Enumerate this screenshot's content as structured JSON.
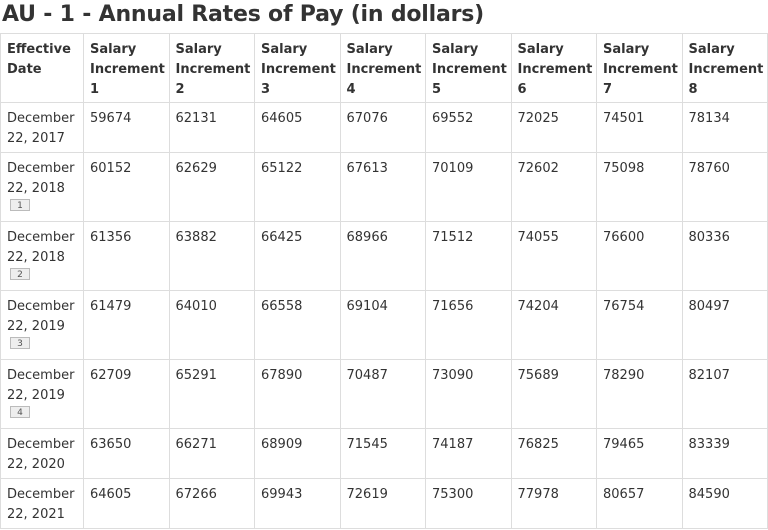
{
  "title": "AU - 1 - Annual Rates of Pay (in dollars)",
  "headers": [
    "Effective Date",
    "Salary Increment 1",
    "Salary Increment 2",
    "Salary Increment 3",
    "Salary Increment 4",
    "Salary Increment 5",
    "Salary Increment 6",
    "Salary Increment 7",
    "Salary Increment 8"
  ],
  "rows": [
    {
      "date": "December 22, 2017",
      "footnote": "",
      "values": [
        "59674",
        "62131",
        "64605",
        "67076",
        "69552",
        "72025",
        "74501",
        "78134"
      ]
    },
    {
      "date": "December 22, 2018",
      "footnote": "1",
      "values": [
        "60152",
        "62629",
        "65122",
        "67613",
        "70109",
        "72602",
        "75098",
        "78760"
      ]
    },
    {
      "date": "December 22, 2018",
      "footnote": "2",
      "values": [
        "61356",
        "63882",
        "66425",
        "68966",
        "71512",
        "74055",
        "76600",
        "80336"
      ]
    },
    {
      "date": "December 22, 2019",
      "footnote": "3",
      "values": [
        "61479",
        "64010",
        "66558",
        "69104",
        "71656",
        "74204",
        "76754",
        "80497"
      ]
    },
    {
      "date": "December 22, 2019",
      "footnote": "4",
      "values": [
        "62709",
        "65291",
        "67890",
        "70487",
        "73090",
        "75689",
        "78290",
        "82107"
      ]
    },
    {
      "date": "December 22, 2020",
      "footnote": "",
      "values": [
        "63650",
        "66271",
        "68909",
        "71545",
        "74187",
        "76825",
        "79465",
        "83339"
      ]
    },
    {
      "date": "December 22, 2021",
      "footnote": "",
      "values": [
        "64605",
        "67266",
        "69943",
        "72619",
        "75300",
        "77978",
        "80657",
        "84590"
      ]
    }
  ]
}
